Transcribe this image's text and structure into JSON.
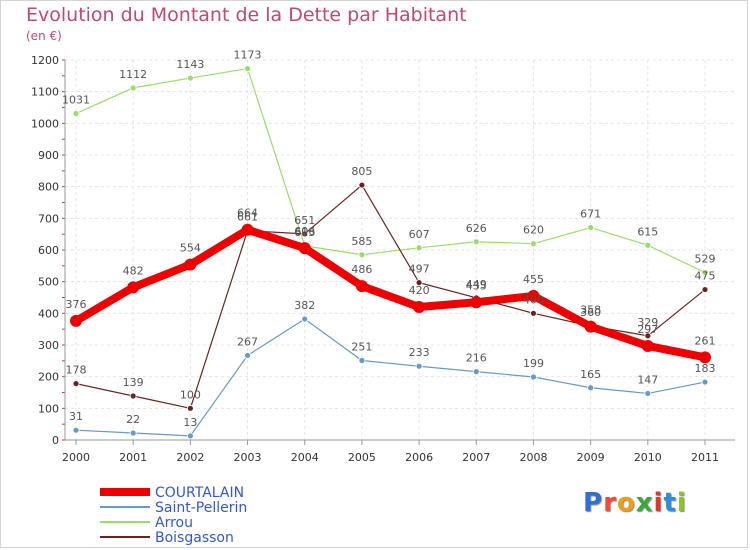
{
  "title": "Evolution du Montant de la Dette par Habitant",
  "subtitle": "(en €)",
  "logo": {
    "text": "Proxiti",
    "colors": [
      "#2d6fd6",
      "#ef4a3d",
      "#e8a21a",
      "#3aa83a",
      "#d63b2f",
      "#2d8fd6",
      "#8ac425"
    ]
  },
  "chart_data": {
    "type": "line",
    "title": "Evolution du Montant de la Dette par Habitant",
    "subtitle": "(en €)",
    "xlabel": "",
    "ylabel": "",
    "x": [
      "2000",
      "2001",
      "2002",
      "2003",
      "2004",
      "2005",
      "2006",
      "2007",
      "2008",
      "2009",
      "2010",
      "2011"
    ],
    "ylim": [
      0,
      1200
    ],
    "yticks": [
      0,
      100,
      200,
      300,
      400,
      500,
      600,
      700,
      800,
      900,
      1000,
      1100,
      1200
    ],
    "grid": true,
    "legend_position": "bottom-left",
    "series": [
      {
        "name": "COURTALAIN",
        "color": "#ee0000",
        "values": [
          376,
          482,
          554,
          664,
          606,
          486,
          420,
          435,
          455,
          358,
          297,
          261
        ],
        "labels": [
          "376",
          "482",
          "554",
          "664",
          "606",
          "486",
          "420",
          "435",
          "455",
          "358",
          "297",
          "261"
        ]
      },
      {
        "name": "Saint-Pellerin",
        "color": "#6699cc",
        "values": [
          31,
          22,
          13,
          267,
          382,
          251,
          233,
          216,
          199,
          165,
          147,
          183
        ],
        "labels": [
          "31",
          "22",
          "13",
          "267",
          "382",
          "251",
          "233",
          "216",
          "199",
          "165",
          "147",
          "183"
        ]
      },
      {
        "name": "Arrou",
        "color": "#99dd66",
        "values": [
          1031,
          1112,
          1143,
          1173,
          613,
          585,
          607,
          626,
          620,
          671,
          615,
          529
        ],
        "labels": [
          "1031",
          "1112",
          "1143",
          "1173",
          "613",
          "585",
          "607",
          "626",
          "620",
          "671",
          "615",
          "529"
        ]
      },
      {
        "name": "Boisgasson",
        "color": "#6b2222",
        "values": [
          178,
          139,
          100,
          661,
          651,
          805,
          497,
          449,
          400,
          360,
          329,
          475
        ],
        "labels": [
          "178",
          "139",
          "100",
          "661",
          "651",
          "805",
          "497",
          "449",
          "400",
          "360",
          "329",
          "475"
        ]
      }
    ]
  }
}
